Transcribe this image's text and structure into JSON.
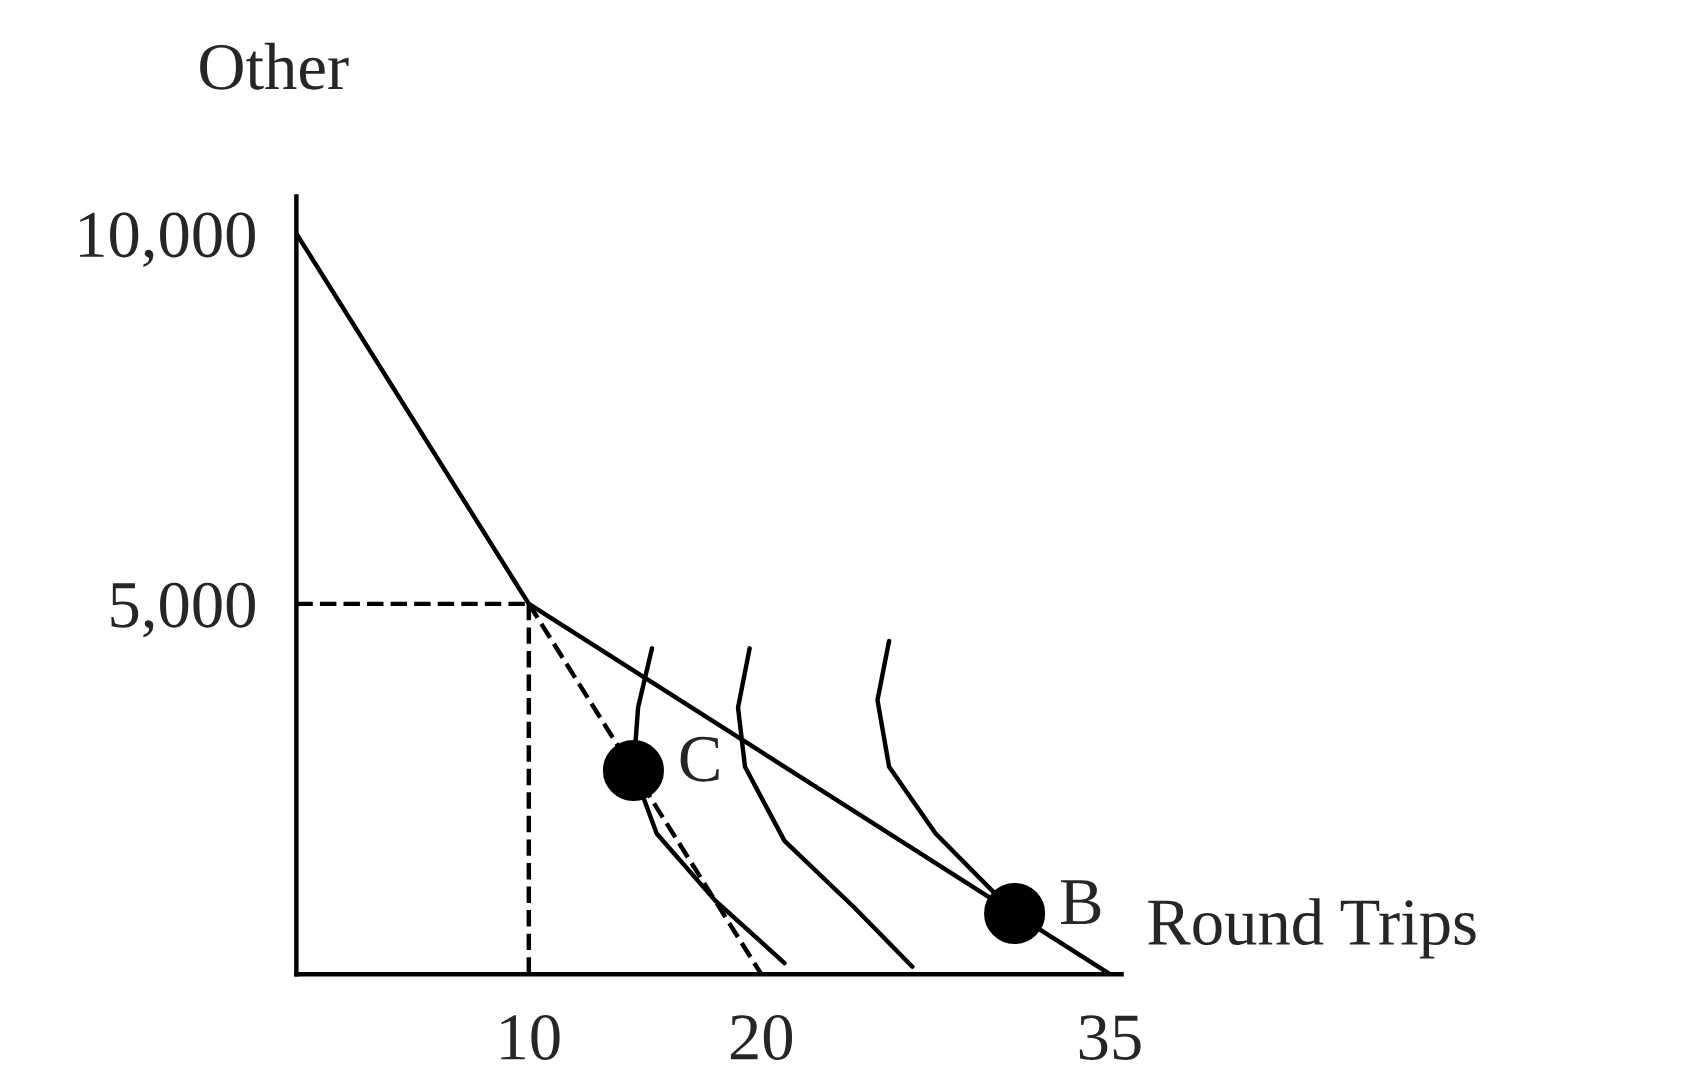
{
  "chart_data": {
    "type": "line",
    "xlabel": "Round Trips",
    "ylabel": "Other",
    "xlim": [
      0,
      35.5
    ],
    "ylim": [
      0,
      10500
    ],
    "xticks": [
      10,
      20,
      35
    ],
    "yticks": [
      {
        "value": 5000,
        "label": "5,000"
      },
      {
        "value": 10000,
        "label": "10,000"
      }
    ],
    "grid": false,
    "legend": false,
    "series": [
      {
        "line_style": "solid",
        "color": "#000000",
        "x": [
          0,
          10,
          35
        ],
        "values": [
          10000,
          5000,
          0
        ]
      },
      {
        "line_style": "dashed",
        "color": "#000000",
        "x": [
          10,
          20
        ],
        "values": [
          5000,
          0
        ]
      },
      {
        "line_style": "dashed",
        "color": "#000000",
        "x": [
          0,
          10
        ],
        "values": [
          5000,
          5000
        ]
      },
      {
        "line_style": "dashed",
        "color": "#000000",
        "x": [
          10,
          10
        ],
        "values": [
          5000,
          0
        ]
      },
      {
        "line_style": "solid",
        "color": "#000000",
        "x": [
          15.3,
          14.7,
          14.5,
          15.5,
          18,
          21
        ],
        "values": [
          4400,
          3600,
          2750,
          1900,
          1000,
          150
        ]
      },
      {
        "line_style": "solid",
        "color": "#000000",
        "x": [
          19.5,
          19,
          19.3,
          21,
          24,
          26.5
        ],
        "values": [
          4400,
          3600,
          2800,
          1800,
          900,
          100
        ]
      },
      {
        "line_style": "solid",
        "color": "#000000",
        "x": [
          25.5,
          25,
          25.5,
          27.5,
          30.9
        ],
        "values": [
          4500,
          3700,
          2800,
          1900,
          820
        ]
      },
      {
        "type": "scatter",
        "marker": "circle",
        "color": "#000000",
        "x": [
          14.5,
          30.9
        ],
        "values": [
          2750,
          820
        ]
      }
    ],
    "annotations": [
      {
        "text": "C",
        "x": 14.5,
        "y": 2750
      },
      {
        "text": "B",
        "x": 30.9,
        "y": 820
      }
    ]
  }
}
